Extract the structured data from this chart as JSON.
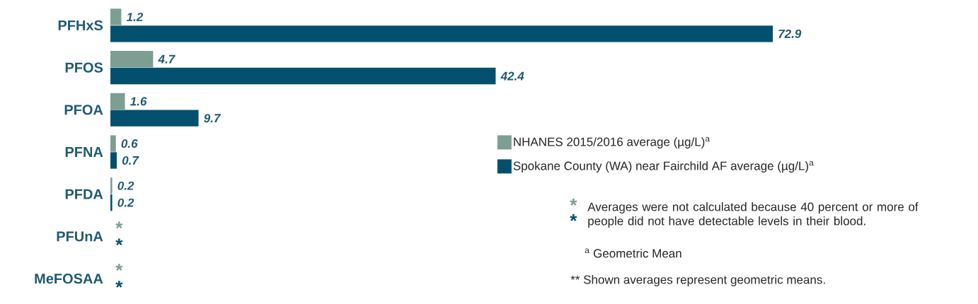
{
  "chart_data": {
    "type": "bar",
    "orientation": "horizontal",
    "categories": [
      "PFHxS",
      "PFOS",
      "PFOA",
      "PFNA",
      "PFDA",
      "PFUnA",
      "MeFOSAA"
    ],
    "series": [
      {
        "name": "NHANES 2015/2016 average (µg/L)$^{a}$",
        "color": "#7d9e92",
        "values": [
          1.2,
          4.7,
          1.6,
          0.6,
          0.2,
          null,
          null
        ],
        "value_labels": [
          "1.2",
          "4.7",
          "1.6",
          "0.6",
          "0.2",
          "*",
          "*"
        ]
      },
      {
        "name": "Spokane County (WA) near Fairchild AF average (µg/L)$^{a}$",
        "color": "#02506e",
        "values": [
          72.9,
          42.4,
          9.7,
          0.7,
          0.2,
          null,
          null
        ],
        "value_labels": [
          "72.9",
          "42.4",
          "9.7",
          "0.7",
          "0.2",
          "*",
          "*"
        ]
      }
    ],
    "tick_labels": "y",
    "legend": "right",
    "grid": false,
    "annotations": [
      "*",
      "*",
      "Averages were not calculated because 40 percent or more of people did not have detectable levels in their blood.",
      "$^{a}$ Geometric Mean",
      "** Shown averages represent geometric means."
    ]
  }
}
